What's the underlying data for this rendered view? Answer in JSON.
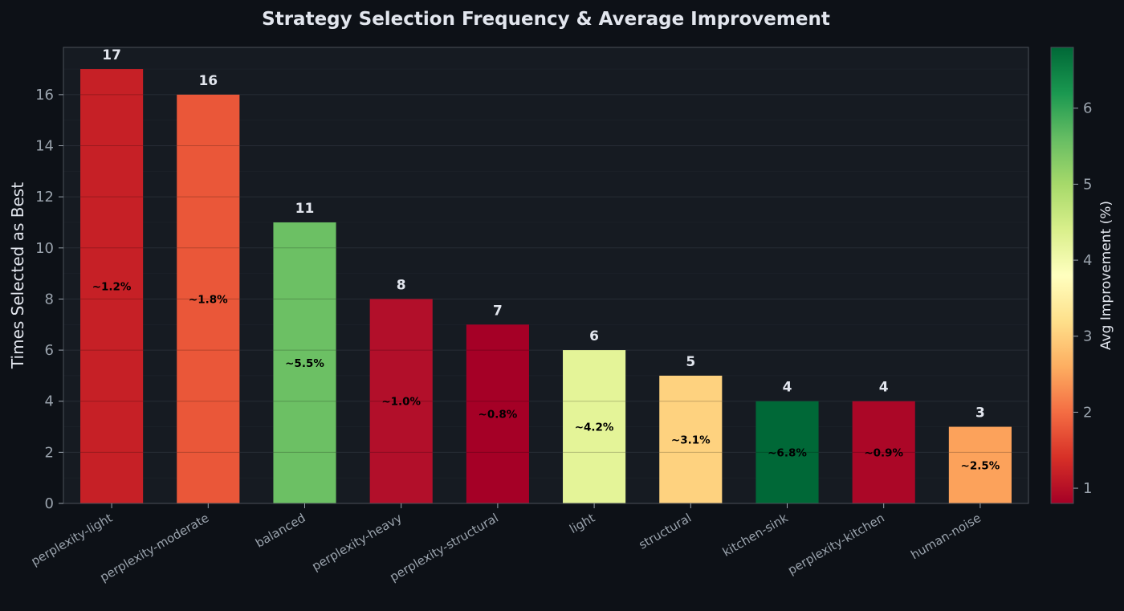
{
  "chart_data": {
    "type": "bar",
    "title": "Strategy Selection Frequency & Average Improvement",
    "xlabel": "",
    "ylabel": "Times Selected as Best",
    "ylim": [
      0,
      17.85
    ],
    "yticks": [
      0,
      2,
      4,
      6,
      8,
      10,
      12,
      14,
      16
    ],
    "grid": true,
    "categories": [
      "perplexity-light",
      "perplexity-moderate",
      "balanced",
      "perplexity-heavy",
      "perplexity-structural",
      "light",
      "structural",
      "kitchen-sink",
      "perplexity-kitchen",
      "human-noise"
    ],
    "values": [
      17,
      16,
      11,
      8,
      7,
      6,
      5,
      4,
      4,
      3
    ],
    "count_labels": [
      "17",
      "16",
      "11",
      "8",
      "7",
      "6",
      "5",
      "4",
      "4",
      "3"
    ],
    "improvement": [
      1.2,
      1.8,
      5.5,
      1.0,
      0.8,
      4.2,
      3.1,
      6.8,
      0.9,
      2.5
    ],
    "improvement_labels": [
      "~1.2%",
      "~1.8%",
      "~5.5%",
      "~1.0%",
      "~0.8%",
      "~4.2%",
      "~3.1%",
      "~6.8%",
      "~0.9%",
      "~2.5%"
    ],
    "bar_colors": [
      "#c62026",
      "#ea5739",
      "#6cc064",
      "#b20f2a",
      "#a50026",
      "#e4f498",
      "#fed27f",
      "#006837",
      "#ab0727",
      "#fca25b"
    ],
    "colorbar": {
      "label": "Avg Improvement (%)",
      "range": [
        0.8,
        6.8
      ],
      "ticks": [
        1,
        2,
        3,
        4,
        5,
        6
      ],
      "tick_labels": [
        "1",
        "2",
        "3",
        "4",
        "5",
        "6"
      ],
      "colormap": "RdYlGn",
      "stops": [
        "#a50026",
        "#d73027",
        "#f46d43",
        "#fdae61",
        "#fee08b",
        "#ffffbf",
        "#d9ef8b",
        "#a6d96a",
        "#66bd63",
        "#1a9850",
        "#006837"
      ]
    }
  },
  "colors": {
    "background": "#0d1117",
    "plot_background": "#161b22",
    "grid": "#262c35",
    "axis": "#4a5058"
  }
}
